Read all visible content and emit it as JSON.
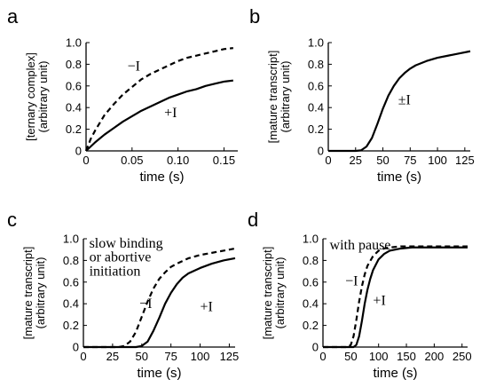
{
  "chart_data": [
    {
      "panel": "a",
      "type": "line",
      "xlabel": "time (s)",
      "ylabel_main": "[ternary complex]",
      "ylabel_sub": "(arbitrary unit)",
      "xlim": [
        0,
        0.165
      ],
      "ylim": [
        0,
        1.0
      ],
      "xticks": [
        0,
        0.05,
        0.1,
        0.15
      ],
      "xticklabels": [
        "0",
        "0.05",
        "0.10",
        "0.15"
      ],
      "yticks": [
        0,
        0.2,
        0.4,
        0.6,
        0.8,
        1.0
      ],
      "yticklabels": [
        "0",
        "0.2",
        "0.4",
        "0.6",
        "0.8",
        "1.0"
      ],
      "series": [
        {
          "name": "−I",
          "style": "dashed",
          "x": [
            0,
            0.005,
            0.01,
            0.015,
            0.02,
            0.03,
            0.04,
            0.05,
            0.06,
            0.07,
            0.08,
            0.09,
            0.1,
            0.11,
            0.12,
            0.13,
            0.14,
            0.15,
            0.16
          ],
          "y": [
            0,
            0.11,
            0.19,
            0.26,
            0.33,
            0.43,
            0.52,
            0.59,
            0.66,
            0.71,
            0.75,
            0.79,
            0.83,
            0.86,
            0.88,
            0.9,
            0.92,
            0.94,
            0.95
          ]
        },
        {
          "name": "+I",
          "style": "solid",
          "x": [
            0,
            0.01,
            0.02,
            0.03,
            0.04,
            0.05,
            0.06,
            0.07,
            0.08,
            0.09,
            0.1,
            0.11,
            0.12,
            0.13,
            0.14,
            0.15,
            0.16
          ],
          "y": [
            0,
            0.08,
            0.15,
            0.21,
            0.27,
            0.32,
            0.37,
            0.41,
            0.45,
            0.49,
            0.52,
            0.55,
            0.57,
            0.6,
            0.62,
            0.64,
            0.65
          ]
        }
      ],
      "annotations": [
        {
          "text": "−I",
          "x": 0.045,
          "y": 0.74
        },
        {
          "text": "+I",
          "x": 0.085,
          "y": 0.31
        }
      ]
    },
    {
      "panel": "b",
      "type": "line",
      "xlabel": "time (s)",
      "ylabel_main": "[mature transcript]",
      "ylabel_sub": "(arbitrary unit)",
      "xlim": [
        0,
        130
      ],
      "ylim": [
        0,
        1.0
      ],
      "xticks": [
        0,
        25,
        50,
        75,
        100,
        125
      ],
      "xticklabels": [
        "0",
        "25",
        "50",
        "75",
        "100",
        "125"
      ],
      "yticks": [
        0,
        0.2,
        0.4,
        0.6,
        0.8,
        1.0
      ],
      "yticklabels": [
        "0",
        "0.2",
        "0.4",
        "0.6",
        "0.8",
        "1.0"
      ],
      "series": [
        {
          "name": "±I",
          "style": "solid",
          "x": [
            0,
            25,
            30,
            35,
            40,
            45,
            50,
            55,
            60,
            65,
            70,
            75,
            80,
            90,
            100,
            110,
            120,
            130
          ],
          "y": [
            0,
            0,
            0.005,
            0.04,
            0.12,
            0.25,
            0.39,
            0.51,
            0.6,
            0.67,
            0.72,
            0.76,
            0.79,
            0.83,
            0.86,
            0.88,
            0.9,
            0.92
          ]
        }
      ],
      "annotations": [
        {
          "text": "±I",
          "x": 64,
          "y": 0.43
        }
      ]
    },
    {
      "panel": "c",
      "type": "line",
      "xlabel": "time (s)",
      "ylabel_main": "[mature transcript]",
      "ylabel_sub": "(arbitrary unit)",
      "xlim": [
        0,
        130
      ],
      "ylim": [
        0,
        1.0
      ],
      "xticks": [
        0,
        25,
        50,
        75,
        100,
        125
      ],
      "xticklabels": [
        "0",
        "25",
        "50",
        "75",
        "100",
        "125"
      ],
      "yticks": [
        0,
        0.2,
        0.4,
        0.6,
        0.8,
        1.0
      ],
      "yticklabels": [
        "0",
        "0.2",
        "0.4",
        "0.6",
        "0.8",
        "1.0"
      ],
      "series": [
        {
          "name": "−I",
          "style": "dashed",
          "x": [
            0,
            30,
            35,
            40,
            45,
            50,
            55,
            60,
            65,
            70,
            75,
            80,
            90,
            100,
            110,
            120,
            130
          ],
          "y": [
            0,
            0,
            0.01,
            0.05,
            0.14,
            0.28,
            0.42,
            0.54,
            0.63,
            0.69,
            0.74,
            0.77,
            0.82,
            0.85,
            0.87,
            0.89,
            0.91
          ]
        },
        {
          "name": "+I",
          "style": "solid",
          "x": [
            0,
            45,
            50,
            55,
            60,
            65,
            70,
            75,
            80,
            85,
            90,
            100,
            110,
            120,
            130
          ],
          "y": [
            0,
            0,
            0.01,
            0.05,
            0.15,
            0.27,
            0.4,
            0.5,
            0.58,
            0.64,
            0.68,
            0.73,
            0.77,
            0.8,
            0.82
          ]
        }
      ],
      "annotations": [
        {
          "text": "slow binding",
          "x": 5,
          "y": 0.92
        },
        {
          "text": "or abortive",
          "x": 5,
          "y": 0.79
        },
        {
          "text": "initiation",
          "x": 5,
          "y": 0.66
        },
        {
          "text": "−I",
          "x": 48,
          "y": 0.36
        },
        {
          "text": "+I",
          "x": 100,
          "y": 0.33
        }
      ]
    },
    {
      "panel": "d",
      "type": "line",
      "xlabel": "time (s)",
      "ylabel_main": "[mature transcript]",
      "ylabel_sub": "(arbitrary unit)",
      "xlim": [
        0,
        260
      ],
      "ylim": [
        0,
        1.0
      ],
      "xticks": [
        0,
        50,
        100,
        150,
        200,
        250
      ],
      "xticklabels": [
        "0",
        "50",
        "100",
        "150",
        "200",
        "250"
      ],
      "yticks": [
        0,
        0.2,
        0.4,
        0.6,
        0.8,
        1.0
      ],
      "yticklabels": [
        "0",
        "0.2",
        "0.4",
        "0.6",
        "0.8",
        "1.0"
      ],
      "series": [
        {
          "name": "−I",
          "style": "dashed",
          "x": [
            0,
            45,
            50,
            55,
            60,
            65,
            70,
            75,
            80,
            90,
            100,
            110,
            120,
            140,
            160,
            180,
            200,
            230,
            260
          ],
          "y": [
            0,
            0,
            0.02,
            0.1,
            0.25,
            0.42,
            0.56,
            0.67,
            0.75,
            0.84,
            0.89,
            0.91,
            0.92,
            0.93,
            0.93,
            0.93,
            0.93,
            0.93,
            0.93
          ]
        },
        {
          "name": "+I",
          "style": "solid",
          "x": [
            0,
            55,
            60,
            65,
            70,
            75,
            80,
            85,
            90,
            100,
            110,
            120,
            140,
            160,
            180,
            200,
            230,
            260
          ],
          "y": [
            0,
            0,
            0.02,
            0.1,
            0.24,
            0.4,
            0.53,
            0.63,
            0.71,
            0.81,
            0.86,
            0.89,
            0.91,
            0.92,
            0.92,
            0.92,
            0.92,
            0.92
          ]
        }
      ],
      "annotations": [
        {
          "text": "with pause",
          "x": 12,
          "y": 0.9
        },
        {
          "text": "−I",
          "x": 40,
          "y": 0.57
        },
        {
          "text": "+I",
          "x": 90,
          "y": 0.39
        }
      ]
    }
  ],
  "panel_labels": [
    "a",
    "b",
    "c",
    "d"
  ]
}
